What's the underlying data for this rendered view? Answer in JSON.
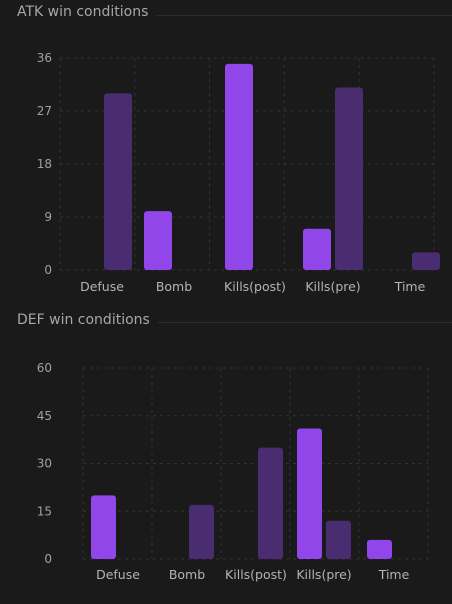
{
  "chart_data": [
    {
      "type": "bar",
      "title": "ATK win conditions",
      "categories": [
        "Defuse",
        "Bomb",
        "Kills(post)",
        "Kills(pre)",
        "Time"
      ],
      "series": [
        {
          "values": [
            null,
            10,
            35,
            7,
            null
          ]
        },
        {
          "values": [
            30,
            null,
            null,
            31,
            3
          ]
        }
      ],
      "colors": [
        "#9146ea",
        "#4a2d70"
      ],
      "yticks": [
        0,
        9,
        18,
        27,
        36
      ],
      "ylim": [
        0,
        36
      ],
      "grid": true
    },
    {
      "type": "bar",
      "title": "DEF win conditions",
      "categories": [
        "Defuse",
        "Bomb",
        "Kills(post)",
        "Kills(pre)",
        "Time"
      ],
      "series": [
        {
          "values": [
            20,
            null,
            null,
            41,
            6
          ]
        },
        {
          "values": [
            null,
            17,
            35,
            12,
            null
          ]
        }
      ],
      "colors": [
        "#9146ea",
        "#4a2d70"
      ],
      "yticks": [
        0,
        15,
        30,
        45,
        60
      ],
      "ylim": [
        0,
        60
      ],
      "grid": true
    }
  ]
}
